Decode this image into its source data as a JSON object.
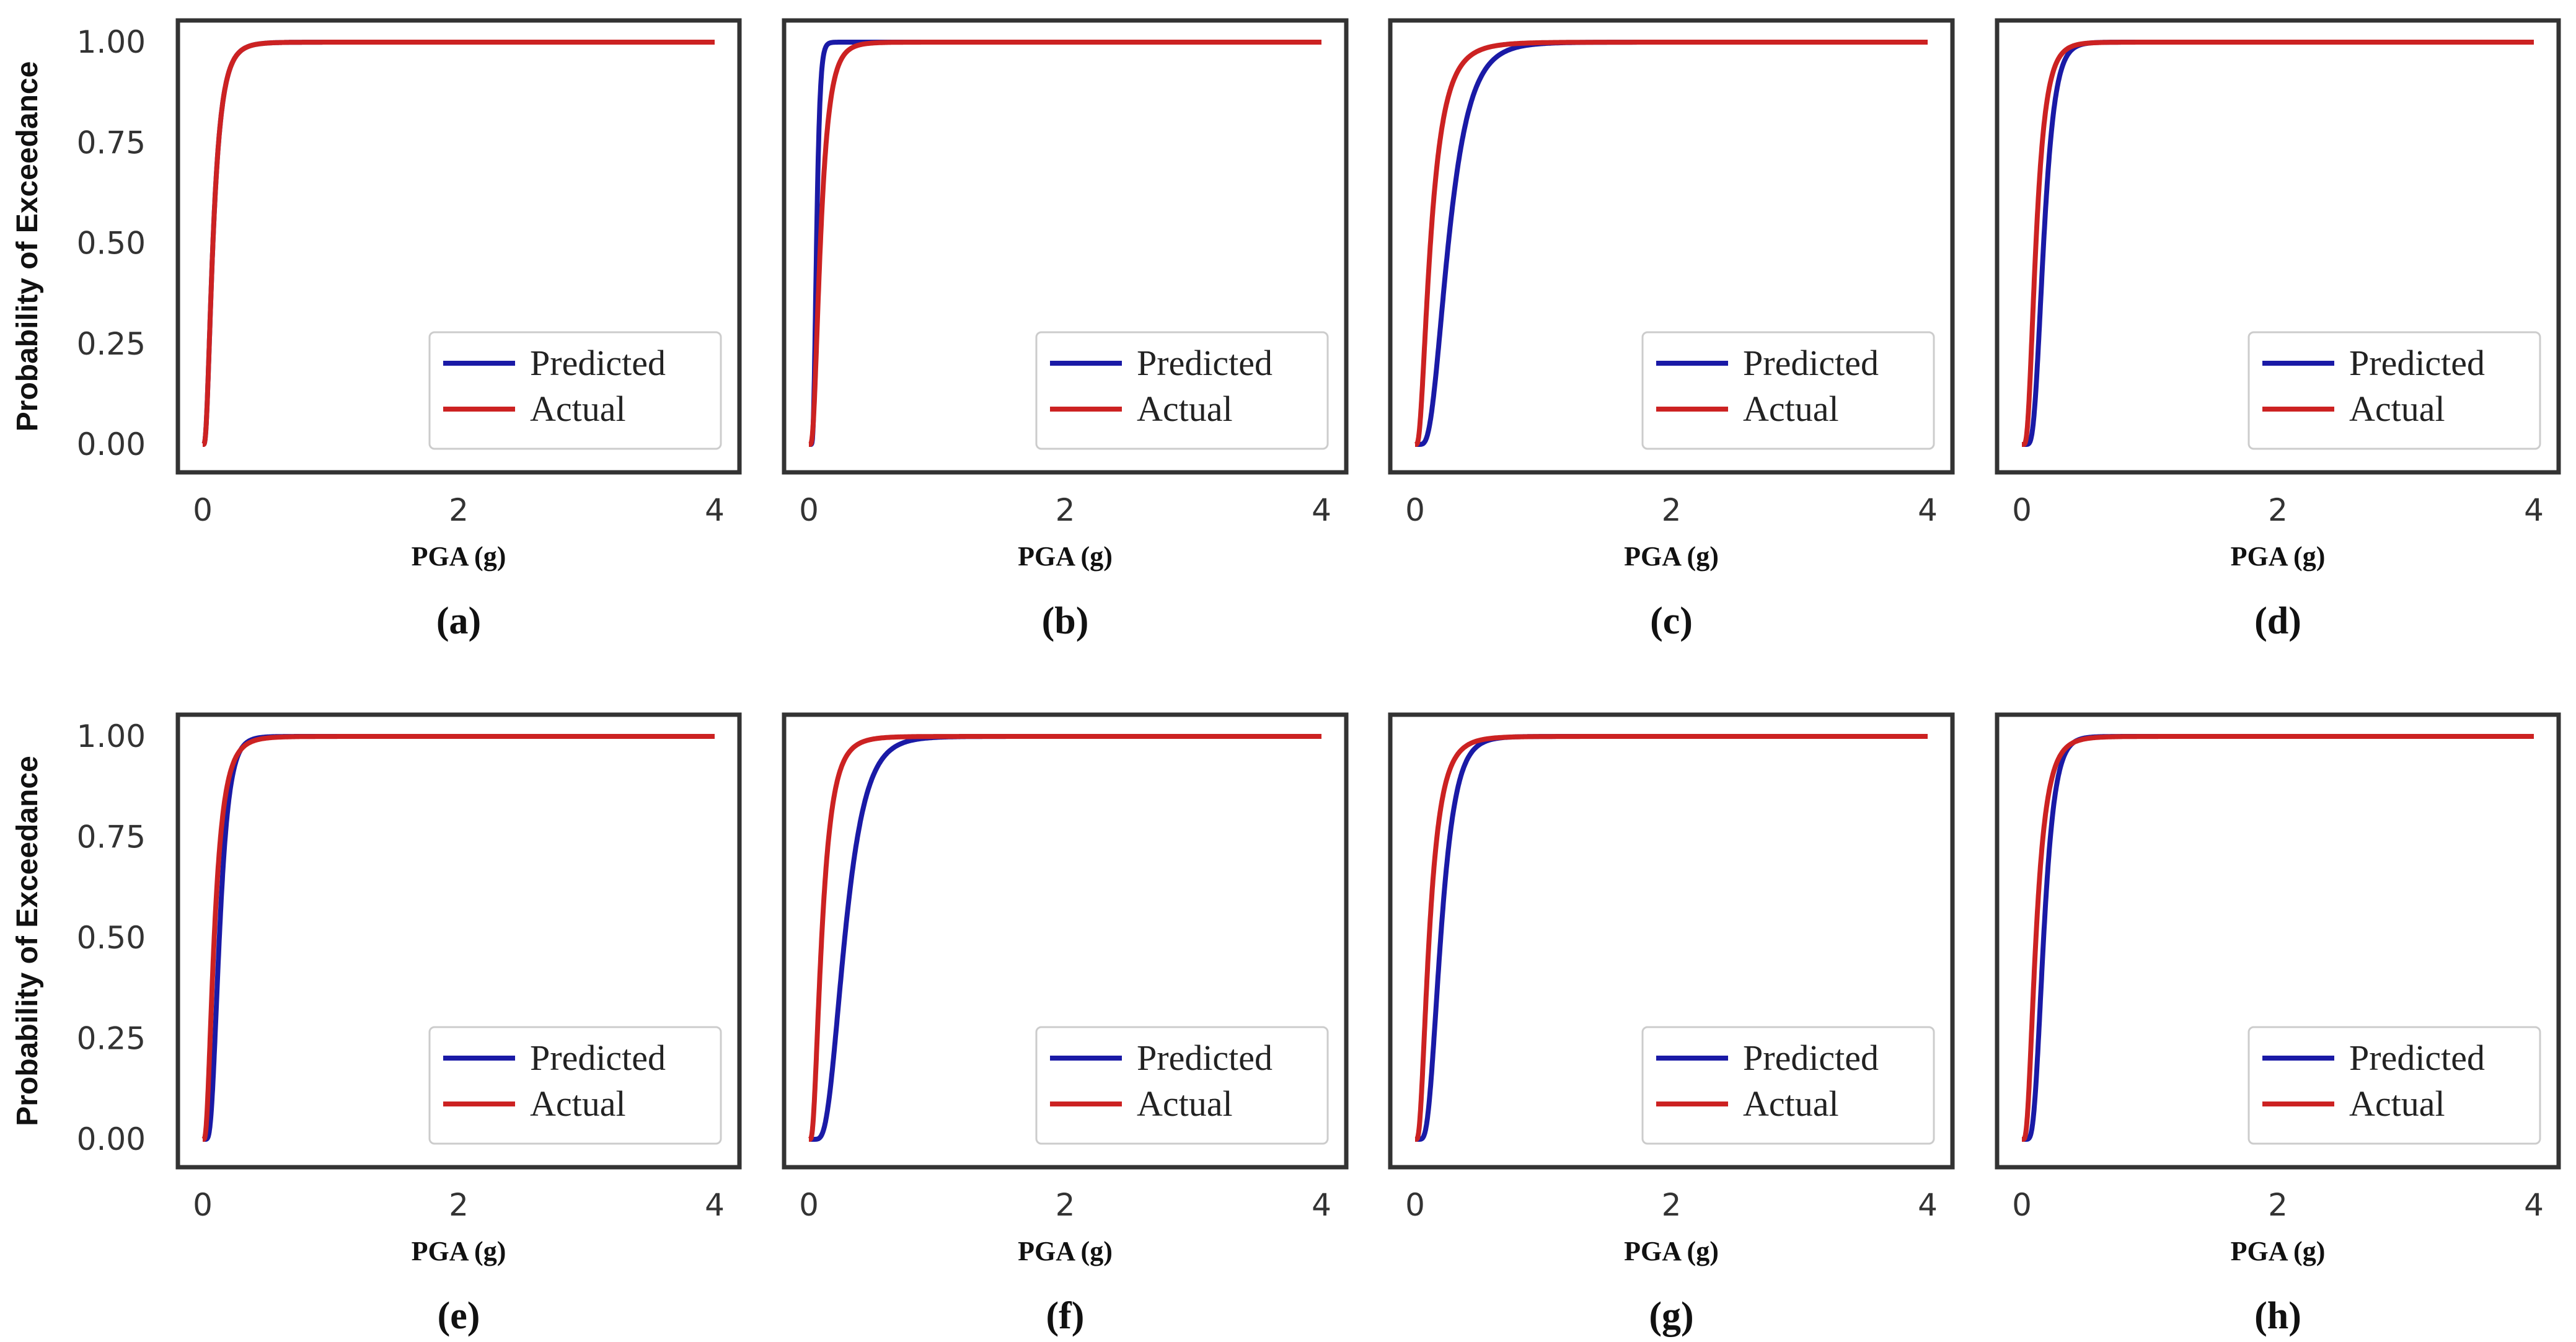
{
  "colors": {
    "predicted": "#1a1aa6",
    "actual": "#cc2222",
    "frame": "#333333"
  },
  "chart_data": [
    {
      "id": "a",
      "type": "line",
      "caption": "(a)",
      "xlabel": "PGA (g)",
      "ylabel": "Probability of Exceedance",
      "xlim": [
        0,
        4
      ],
      "ylim": [
        0,
        1
      ],
      "xticks": [
        "0",
        "2",
        "4"
      ],
      "yticks": [
        "0.00",
        "0.25",
        "0.50",
        "0.75",
        "1.00"
      ],
      "legend_position": "lower-right",
      "grid": false,
      "series": [
        {
          "name": "Predicted",
          "median": 0.08,
          "beta": 0.65
        },
        {
          "name": "Actual",
          "median": 0.08,
          "beta": 0.65
        }
      ]
    },
    {
      "id": "b",
      "type": "line",
      "caption": "(b)",
      "xlabel": "PGA (g)",
      "ylabel": "",
      "xlim": [
        0,
        4
      ],
      "ylim": [
        0,
        1
      ],
      "xticks": [
        "0",
        "2",
        "4"
      ],
      "yticks": [],
      "legend_position": "lower-right",
      "grid": false,
      "series": [
        {
          "name": "Predicted",
          "median": 0.06,
          "beta": 0.35
        },
        {
          "name": "Actual",
          "median": 0.09,
          "beta": 0.6
        }
      ]
    },
    {
      "id": "c",
      "type": "line",
      "caption": "(c)",
      "xlabel": "PGA (g)",
      "ylabel": "",
      "xlim": [
        0,
        4
      ],
      "ylim": [
        0,
        1
      ],
      "xticks": [
        "0",
        "2",
        "4"
      ],
      "yticks": [],
      "legend_position": "lower-right",
      "grid": false,
      "series": [
        {
          "name": "Predicted",
          "median": 0.26,
          "beta": 0.5
        },
        {
          "name": "Actual",
          "median": 0.12,
          "beta": 0.7
        }
      ]
    },
    {
      "id": "d",
      "type": "line",
      "caption": "(d)",
      "xlabel": "PGA (g)",
      "ylabel": "",
      "xlim": [
        0,
        4
      ],
      "ylim": [
        0,
        1
      ],
      "xticks": [
        "0",
        "2",
        "4"
      ],
      "yticks": [],
      "legend_position": "lower-right",
      "grid": false,
      "series": [
        {
          "name": "Predicted",
          "median": 0.17,
          "beta": 0.4
        },
        {
          "name": "Actual",
          "median": 0.11,
          "beta": 0.55
        }
      ]
    },
    {
      "id": "e",
      "type": "line",
      "caption": "(e)",
      "xlabel": "PGA (g)",
      "ylabel": "Probability of Exceedance",
      "xlim": [
        0,
        4
      ],
      "ylim": [
        0,
        1
      ],
      "xticks": [
        "0",
        "2",
        "4"
      ],
      "yticks": [
        "0.00",
        "0.25",
        "0.50",
        "0.75",
        "1.00"
      ],
      "legend_position": "lower-right",
      "grid": false,
      "series": [
        {
          "name": "Predicted",
          "median": 0.13,
          "beta": 0.45
        },
        {
          "name": "Actual",
          "median": 0.09,
          "beta": 0.65
        }
      ]
    },
    {
      "id": "f",
      "type": "line",
      "caption": "(f)",
      "xlabel": "PGA (g)",
      "ylabel": "",
      "xlim": [
        0,
        4
      ],
      "ylim": [
        0,
        1
      ],
      "xticks": [
        "0",
        "2",
        "4"
      ],
      "yticks": [],
      "legend_position": "lower-right",
      "grid": false,
      "series": [
        {
          "name": "Predicted",
          "median": 0.28,
          "beta": 0.45
        },
        {
          "name": "Actual",
          "median": 0.1,
          "beta": 0.65
        }
      ]
    },
    {
      "id": "g",
      "type": "line",
      "caption": "(g)",
      "xlabel": "PGA (g)",
      "ylabel": "",
      "xlim": [
        0,
        4
      ],
      "ylim": [
        0,
        1
      ],
      "xticks": [
        "0",
        "2",
        "4"
      ],
      "yticks": [],
      "legend_position": "lower-right",
      "grid": false,
      "series": [
        {
          "name": "Predicted",
          "median": 0.2,
          "beta": 0.45
        },
        {
          "name": "Actual",
          "median": 0.11,
          "beta": 0.65
        }
      ]
    },
    {
      "id": "h",
      "type": "line",
      "caption": "(h)",
      "xlabel": "PGA (g)",
      "ylabel": "",
      "xlim": [
        0,
        4
      ],
      "ylim": [
        0,
        1
      ],
      "xticks": [
        "0",
        "2",
        "4"
      ],
      "yticks": [],
      "legend_position": "lower-right",
      "grid": false,
      "series": [
        {
          "name": "Predicted",
          "median": 0.17,
          "beta": 0.4
        },
        {
          "name": "Actual",
          "median": 0.11,
          "beta": 0.6
        }
      ]
    }
  ]
}
